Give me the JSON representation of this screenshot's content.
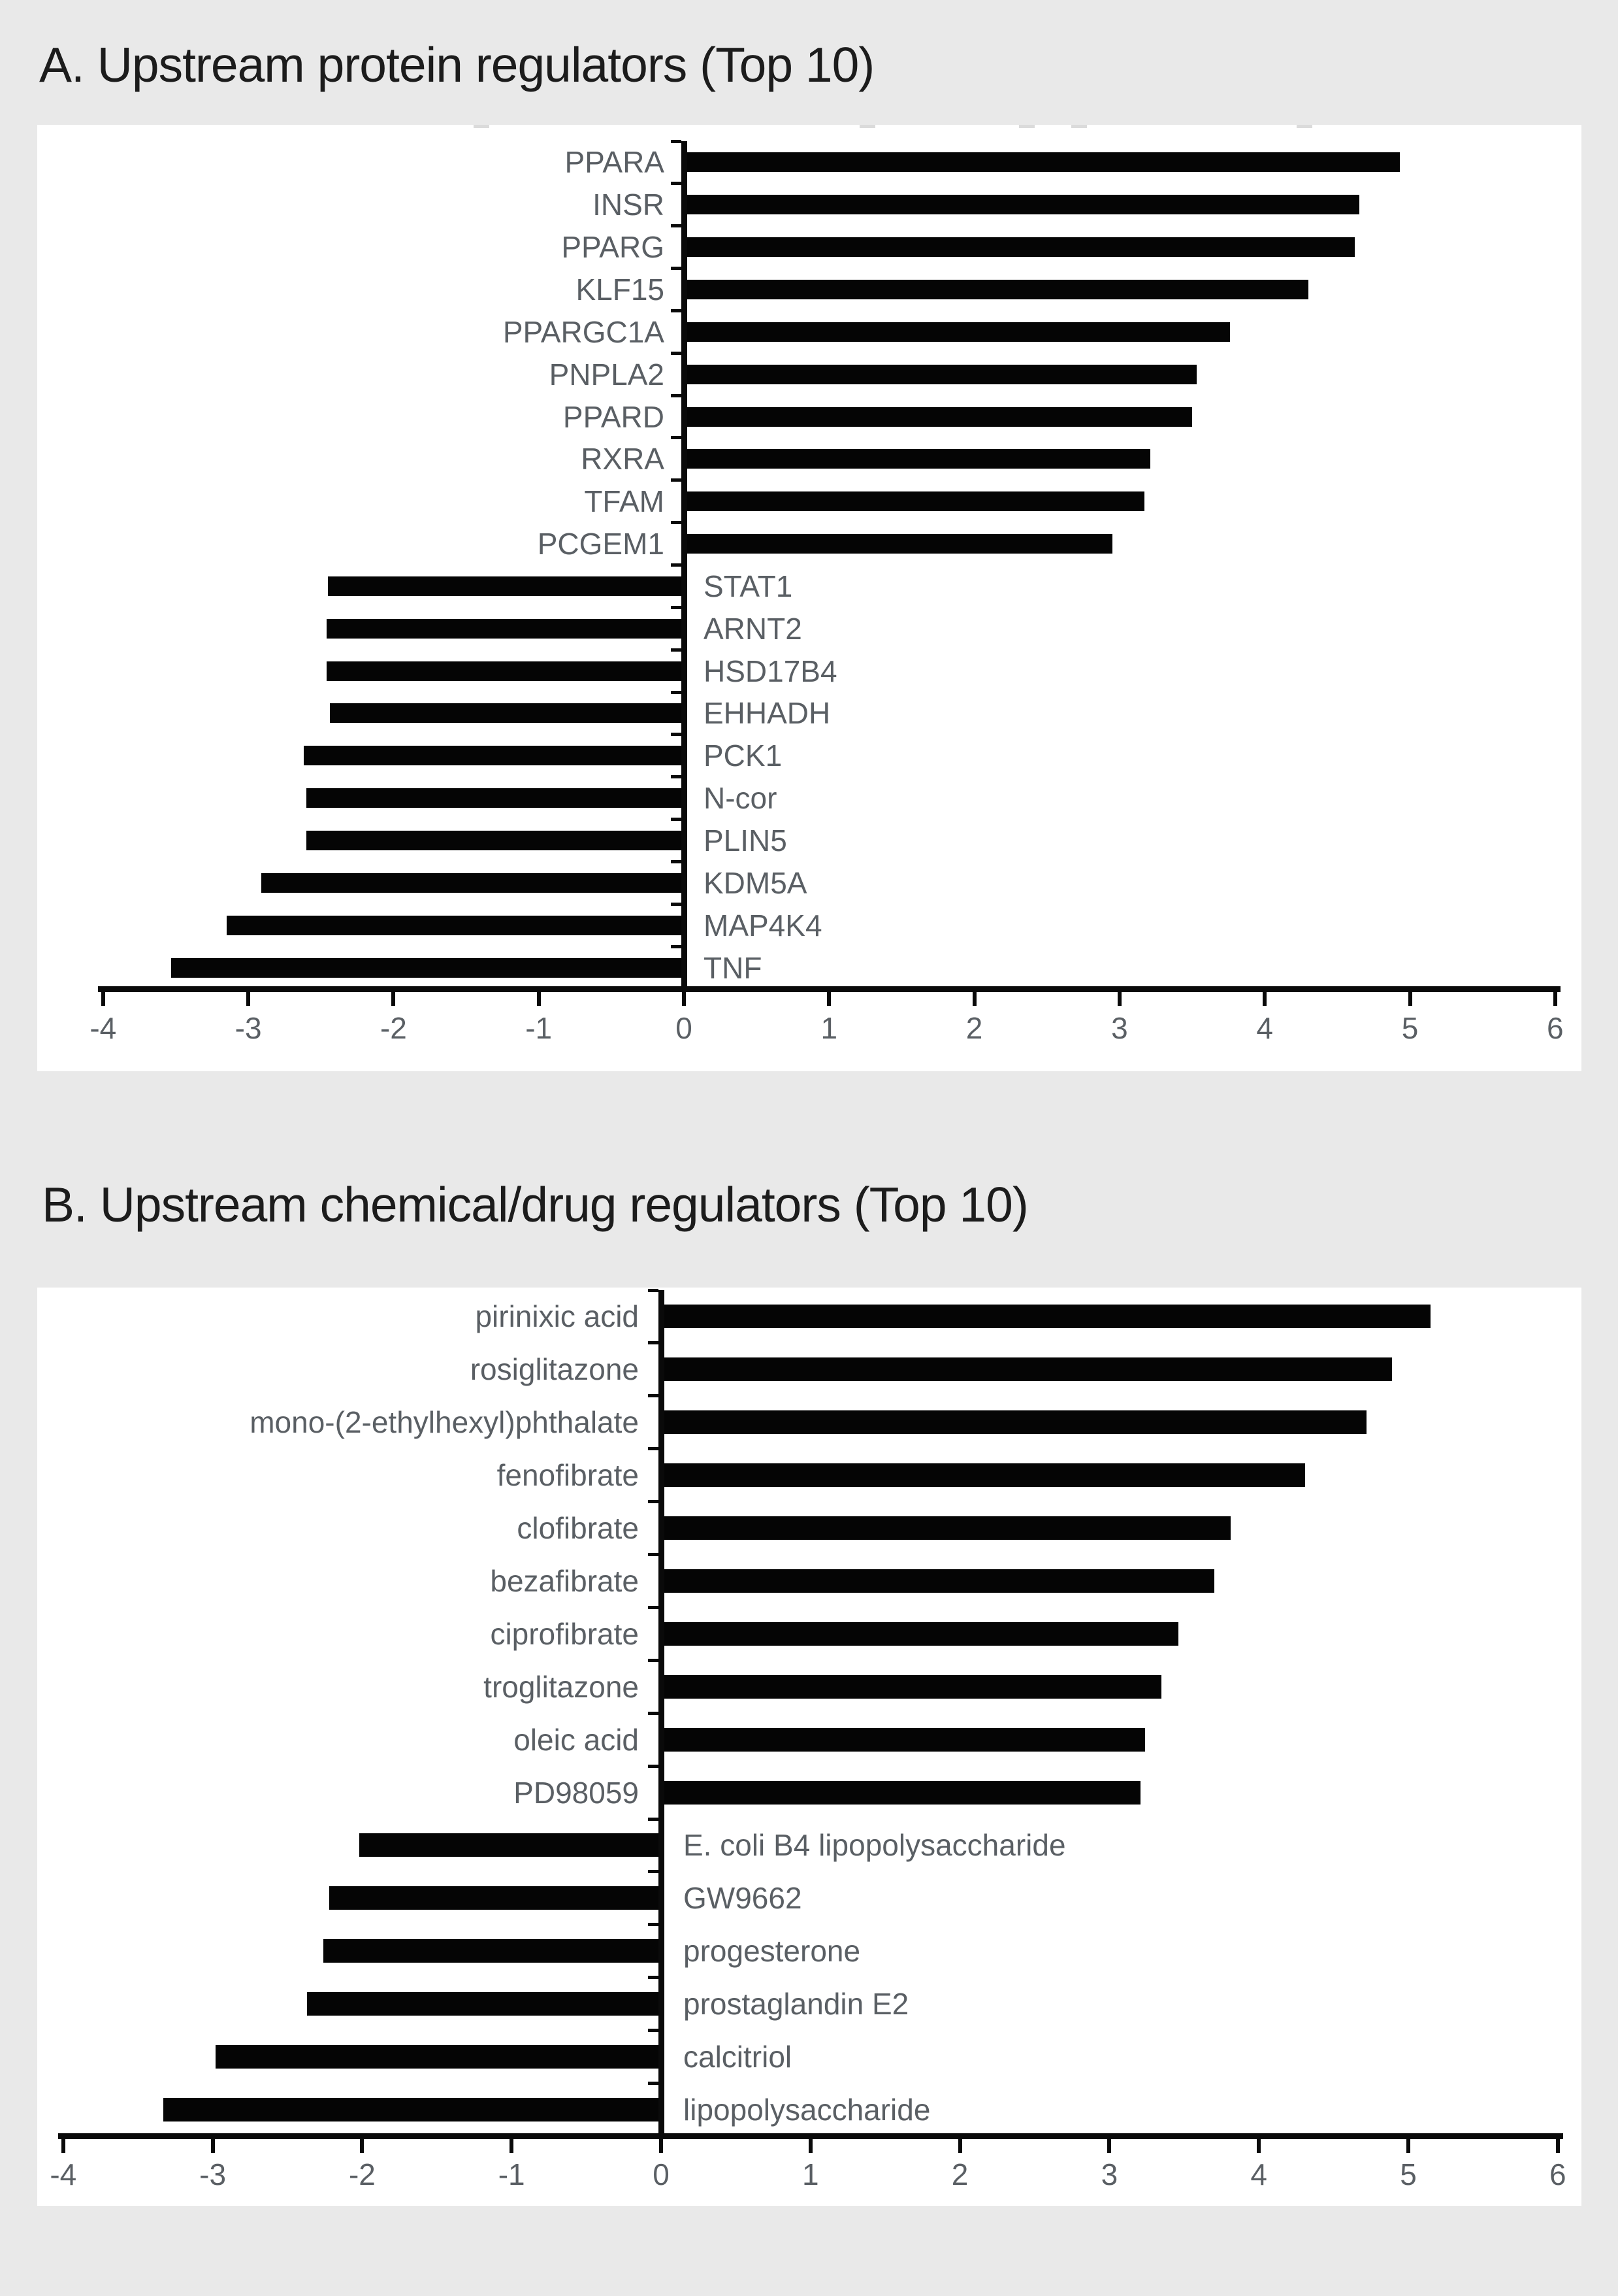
{
  "colors": {
    "background": "#e9e9e9",
    "panel": "#ffffff",
    "bar": "#050505",
    "label_text": "#5a5f64",
    "title_text": "#1c1c1c"
  },
  "chart_data": [
    {
      "type": "bar",
      "orientation": "horizontal",
      "title": "A. Upstream protein regulators (Top 10)",
      "categories": [
        "PPARA",
        "INSR",
        "PPARG",
        "KLF15",
        "PPARGC1A",
        "PNPLA2",
        "PPARD",
        "RXRA",
        "TFAM",
        "PCGEM1",
        "STAT1",
        "ARNT2",
        "HSD17B4",
        "EHHADH",
        "PCK1",
        "N-cor",
        "PLIN5",
        "KDM5A",
        "MAP4K4",
        "TNF"
      ],
      "values": [
        4.93,
        4.65,
        4.62,
        4.3,
        3.76,
        3.53,
        3.5,
        3.21,
        3.17,
        2.95,
        -2.45,
        -2.46,
        -2.46,
        -2.44,
        -2.62,
        -2.6,
        -2.6,
        -2.91,
        -3.15,
        -3.53
      ],
      "xlim": [
        -4,
        6
      ],
      "x_ticks": [
        "-4",
        "-3",
        "-2",
        "-1",
        "0",
        "1",
        "2",
        "3",
        "4",
        "5",
        "6"
      ],
      "xlabel": "",
      "ylabel": "",
      "grid": false,
      "legend": false,
      "bar_color": "#050505"
    },
    {
      "type": "bar",
      "orientation": "horizontal",
      "title": "B. Upstream chemical/drug regulators (Top 10)",
      "categories": [
        "pirinixic acid",
        "rosiglitazone",
        "mono-(2-ethylhexyl)phthalate",
        "fenofibrate",
        "clofibrate",
        "bezafibrate",
        "ciprofibrate",
        "troglitazone",
        "oleic acid",
        "PD98059",
        "E. coli B4 lipopolysaccharide",
        "GW9662",
        "progesterone",
        "prostaglandin E2",
        "calcitriol",
        "lipopolysaccharide"
      ],
      "values": [
        5.15,
        4.89,
        4.72,
        4.31,
        3.81,
        3.7,
        3.46,
        3.35,
        3.24,
        3.21,
        -2.02,
        -2.22,
        -2.26,
        -2.37,
        -2.98,
        -3.33
      ],
      "xlim": [
        -4,
        6
      ],
      "x_ticks": [
        "-4",
        "-3",
        "-2",
        "-1",
        "0",
        "1",
        "2",
        "3",
        "4",
        "5",
        "6"
      ],
      "xlabel": "",
      "ylabel": "",
      "grid": false,
      "legend": false,
      "bar_color": "#050505"
    }
  ]
}
